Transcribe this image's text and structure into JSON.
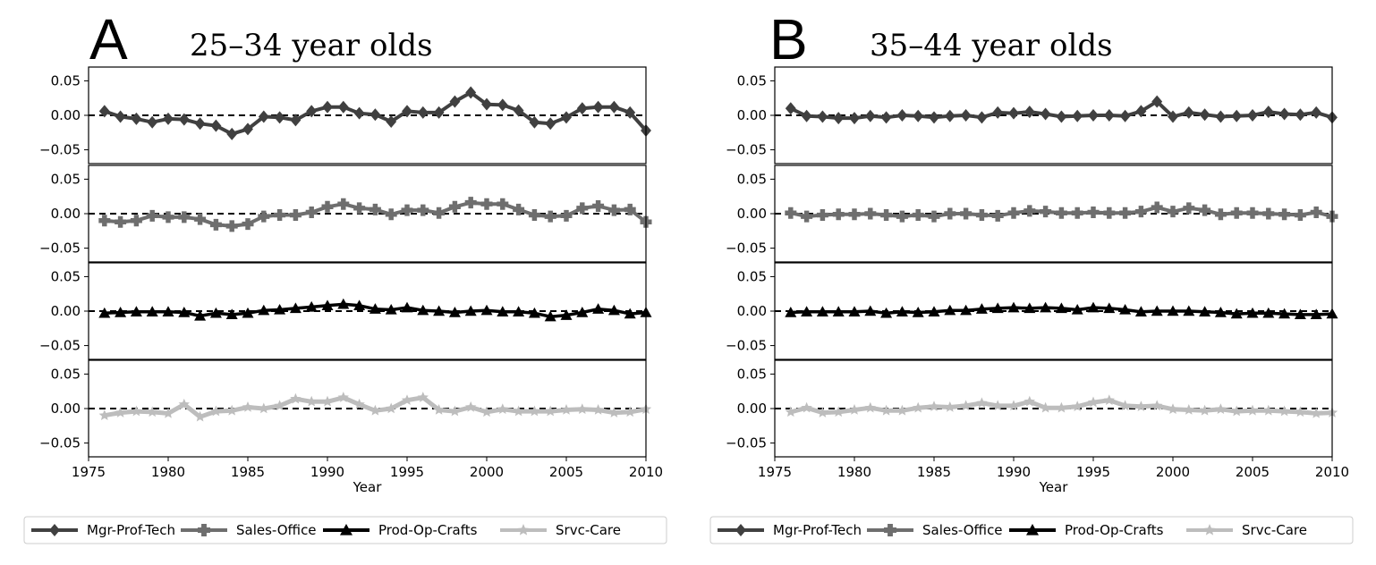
{
  "chart_data": [
    {
      "type": "line",
      "panel_label": "A",
      "title": "25–34 year olds",
      "xlabel": "Year",
      "xlim": [
        1975,
        2010
      ],
      "xticks": [
        "1975",
        "1980",
        "1985",
        "1990",
        "1995",
        "2000",
        "2005",
        "2010"
      ],
      "ylim": [
        -0.07,
        0.07
      ],
      "yticks": [
        "0.05",
        "0.00",
        "−0.05"
      ],
      "x": [
        1976,
        1977,
        1978,
        1979,
        1980,
        1981,
        1982,
        1983,
        1984,
        1985,
        1986,
        1987,
        1988,
        1989,
        1990,
        1991,
        1992,
        1993,
        1994,
        1995,
        1996,
        1997,
        1998,
        1999,
        2000,
        2001,
        2002,
        2003,
        2004,
        2005,
        2006,
        2007,
        2008,
        2009,
        2010
      ],
      "subplots": [
        {
          "series": "Mgr-Prof-Tech",
          "values": [
            0.006,
            -0.002,
            -0.005,
            -0.01,
            -0.005,
            -0.006,
            -0.012,
            -0.015,
            -0.027,
            -0.02,
            -0.002,
            -0.003,
            -0.007,
            0.006,
            0.012,
            0.012,
            0.003,
            0.001,
            -0.009,
            0.006,
            0.004,
            0.004,
            0.02,
            0.033,
            0.016,
            0.015,
            0.007,
            -0.01,
            -0.012,
            -0.003,
            0.01,
            0.012,
            0.012,
            0.004,
            -0.022
          ]
        },
        {
          "series": "Sales-Office",
          "values": [
            -0.01,
            -0.012,
            -0.01,
            -0.003,
            -0.005,
            -0.005,
            -0.008,
            -0.016,
            -0.018,
            -0.015,
            -0.004,
            -0.002,
            -0.002,
            0.002,
            0.01,
            0.014,
            0.008,
            0.006,
            -0.001,
            0.005,
            0.005,
            0.001,
            0.01,
            0.016,
            0.014,
            0.014,
            0.006,
            -0.002,
            -0.004,
            -0.003,
            0.008,
            0.011,
            0.005,
            0.006,
            -0.012
          ]
        },
        {
          "series": "Prod-Op-Crafts",
          "values": [
            -0.003,
            -0.002,
            -0.001,
            -0.001,
            -0.001,
            -0.002,
            -0.007,
            -0.003,
            -0.005,
            -0.003,
            0.001,
            0.002,
            0.004,
            0.006,
            0.008,
            0.01,
            0.008,
            0.003,
            0.002,
            0.005,
            0.001,
            0.0,
            -0.002,
            0.0,
            0.001,
            -0.001,
            -0.001,
            -0.003,
            -0.008,
            -0.006,
            -0.002,
            0.003,
            0.001,
            -0.004,
            -0.002
          ]
        },
        {
          "series": "Srvc-Care",
          "values": [
            -0.01,
            -0.006,
            -0.004,
            -0.005,
            -0.007,
            0.006,
            -0.012,
            -0.004,
            -0.003,
            0.002,
            0.0,
            0.004,
            0.014,
            0.01,
            0.01,
            0.016,
            0.006,
            -0.003,
            0.0,
            0.012,
            0.016,
            -0.002,
            -0.004,
            0.002,
            -0.005,
            -0.001,
            -0.004,
            -0.004,
            -0.004,
            -0.002,
            -0.001,
            -0.002,
            -0.006,
            -0.005,
            -0.001
          ]
        }
      ]
    },
    {
      "type": "line",
      "panel_label": "B",
      "title": "35–44 year olds",
      "xlabel": "Year",
      "xlim": [
        1975,
        2010
      ],
      "xticks": [
        "1975",
        "1980",
        "1985",
        "1990",
        "1995",
        "2000",
        "2005",
        "2010"
      ],
      "ylim": [
        -0.07,
        0.07
      ],
      "yticks": [
        "0.05",
        "0.00",
        "−0.05"
      ],
      "x": [
        1976,
        1977,
        1978,
        1979,
        1980,
        1981,
        1982,
        1983,
        1984,
        1985,
        1986,
        1987,
        1988,
        1989,
        1990,
        1991,
        1992,
        1993,
        1994,
        1995,
        1996,
        1997,
        1998,
        1999,
        2000,
        2001,
        2002,
        2003,
        2004,
        2005,
        2006,
        2007,
        2008,
        2009,
        2010
      ],
      "subplots": [
        {
          "series": "Mgr-Prof-Tech",
          "values": [
            0.01,
            -0.001,
            -0.002,
            -0.004,
            -0.004,
            -0.001,
            -0.003,
            0.0,
            -0.001,
            -0.003,
            -0.001,
            0.0,
            -0.003,
            0.004,
            0.003,
            0.005,
            0.002,
            -0.002,
            -0.001,
            0.0,
            0.0,
            -0.001,
            0.006,
            0.02,
            -0.002,
            0.004,
            0.001,
            -0.002,
            -0.001,
            0.0,
            0.005,
            0.002,
            0.001,
            0.004,
            -0.003
          ]
        },
        {
          "series": "Sales-Office",
          "values": [
            0.001,
            -0.004,
            -0.002,
            -0.001,
            -0.001,
            0.0,
            -0.002,
            -0.004,
            -0.002,
            -0.004,
            0.0,
            0.0,
            -0.002,
            -0.003,
            0.001,
            0.004,
            0.003,
            0.001,
            0.001,
            0.002,
            0.001,
            0.001,
            0.003,
            0.009,
            0.003,
            0.008,
            0.005,
            -0.001,
            0.001,
            0.001,
            0.0,
            -0.001,
            -0.002,
            0.002,
            -0.004
          ]
        },
        {
          "series": "Prod-Op-Crafts",
          "values": [
            -0.002,
            -0.001,
            -0.001,
            -0.001,
            -0.001,
            0.0,
            -0.003,
            -0.001,
            -0.002,
            -0.001,
            0.001,
            0.001,
            0.003,
            0.004,
            0.005,
            0.004,
            0.005,
            0.004,
            0.002,
            0.005,
            0.004,
            0.002,
            -0.001,
            0.0,
            0.0,
            0.0,
            -0.001,
            -0.002,
            -0.004,
            -0.003,
            -0.003,
            -0.004,
            -0.005,
            -0.005,
            -0.004
          ]
        },
        {
          "series": "Srvc-Care",
          "values": [
            -0.005,
            0.001,
            -0.006,
            -0.005,
            -0.002,
            0.001,
            -0.003,
            -0.003,
            0.001,
            0.003,
            0.002,
            0.004,
            0.008,
            0.004,
            0.004,
            0.01,
            0.001,
            0.001,
            0.003,
            0.009,
            0.012,
            0.004,
            0.003,
            0.004,
            -0.001,
            -0.002,
            -0.003,
            -0.001,
            -0.004,
            -0.003,
            -0.003,
            -0.004,
            -0.005,
            -0.007,
            -0.006
          ]
        }
      ]
    }
  ],
  "legend": [
    {
      "label": "Mgr-Prof-Tech",
      "color": "#404040",
      "marker": "diamond"
    },
    {
      "label": "Sales-Office",
      "color": "#6e6e6e",
      "marker": "plus"
    },
    {
      "label": "Prod-Op-Crafts",
      "color": "#000000",
      "marker": "triangle"
    },
    {
      "label": "Srvc-Care",
      "color": "#bdbdbd",
      "marker": "star"
    }
  ],
  "legend_placement": "bottom",
  "grid": false,
  "reference_line": {
    "y": 0,
    "style": "dashed",
    "color": "#000000"
  }
}
